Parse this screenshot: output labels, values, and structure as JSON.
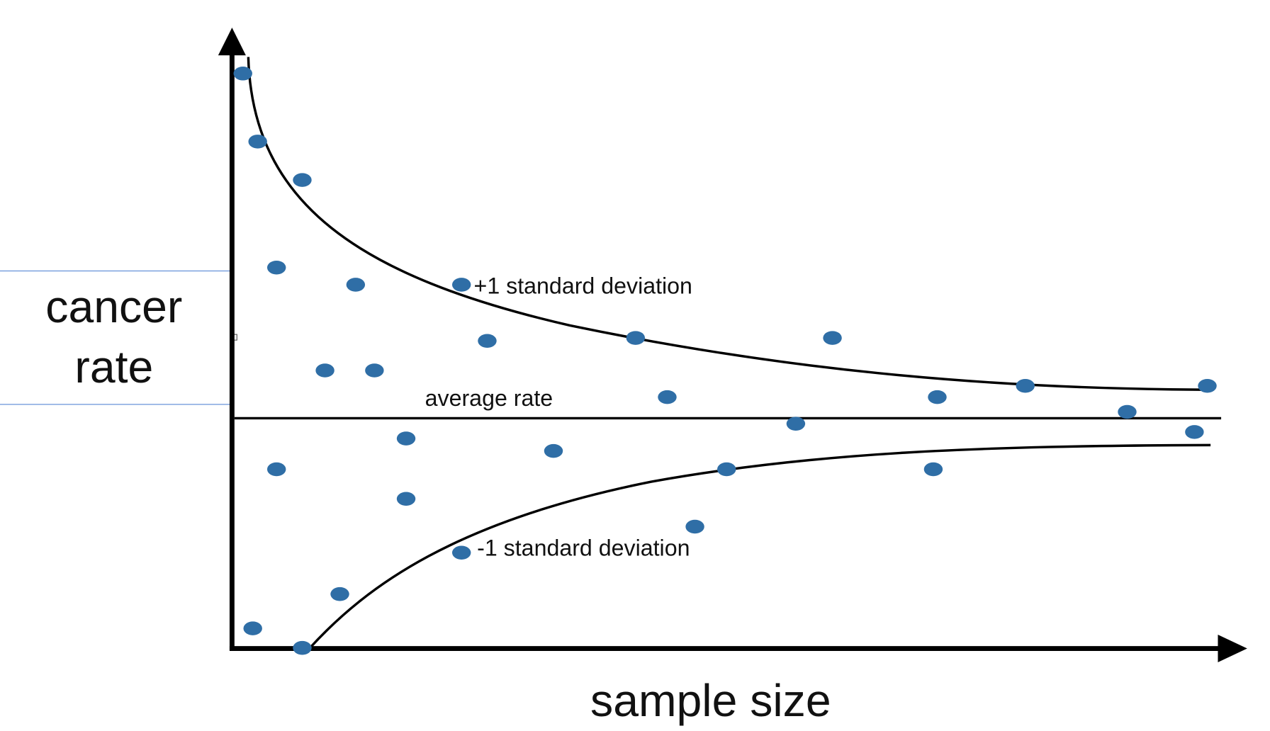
{
  "chart_data": {
    "type": "scatter",
    "x_label": "sample size",
    "y_label": "cancer rate",
    "annotations": [
      "+1 standard deviation",
      "average rate",
      "-1 standard deviation"
    ],
    "color": "#2f6ea6",
    "xlim": [
      0,
      100
    ],
    "ylim": [
      0,
      100
    ],
    "x": [
      1.1,
      2.6,
      7.1,
      4.5,
      12.5,
      23.2,
      25.8,
      40.8,
      60.7,
      9.4,
      14.4,
      44.0,
      71.3,
      80.2,
      98.6,
      90.5,
      57.0,
      97.3,
      17.6,
      32.5,
      4.5,
      50.0,
      70.9,
      17.6,
      46.8,
      23.2,
      10.9,
      2.1,
      7.1
    ],
    "values": [
      97.2,
      85.7,
      79.2,
      64.4,
      61.5,
      61.5,
      52.0,
      52.5,
      52.5,
      47.0,
      47.0,
      42.5,
      42.5,
      44.4,
      44.4,
      40.0,
      38.0,
      36.6,
      35.5,
      33.4,
      30.3,
      30.3,
      30.3,
      25.3,
      20.6,
      16.2,
      9.2,
      3.4,
      0.1
    ]
  }
}
